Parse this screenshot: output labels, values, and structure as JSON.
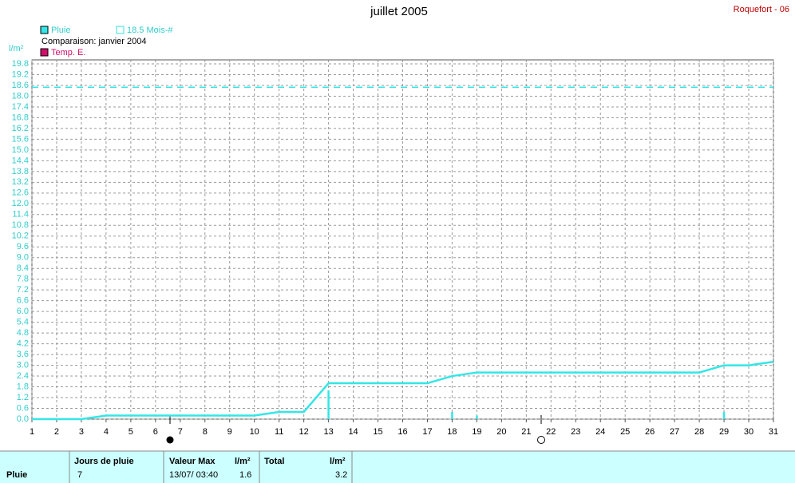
{
  "chart_data": {
    "type": "line",
    "title": "juillet 2005",
    "station": "Roquefort - 06",
    "comparison": "Comparaison: janvier 2004",
    "ylabel": "l/m²",
    "x": [
      1,
      2,
      3,
      4,
      5,
      6,
      7,
      8,
      9,
      10,
      11,
      12,
      13,
      14,
      15,
      16,
      17,
      18,
      19,
      20,
      21,
      22,
      23,
      24,
      25,
      26,
      27,
      28,
      29,
      30,
      31
    ],
    "xlim": [
      1,
      31
    ],
    "xticks": [
      1,
      2,
      3,
      4,
      5,
      6,
      7,
      8,
      9,
      10,
      11,
      12,
      13,
      14,
      15,
      16,
      17,
      18,
      19,
      20,
      21,
      22,
      23,
      24,
      25,
      26,
      27,
      28,
      29,
      30,
      31
    ],
    "ylim": [
      0,
      19.8
    ],
    "yticks": [
      {
        "value": 0,
        "label": "0.0"
      },
      0.6,
      1.2,
      1.8,
      2.4,
      {
        "value": 3,
        "label": "3.0"
      },
      3.6,
      4.2,
      4.8,
      5.4,
      {
        "value": 6,
        "label": "6.0"
      },
      6.6,
      7.2,
      7.8,
      8.4,
      {
        "value": 9,
        "label": "9.0"
      },
      9.6,
      10.2,
      10.8,
      11.4,
      {
        "value": 12,
        "label": "12.0"
      },
      12.6,
      13.2,
      13.8,
      14.4,
      {
        "value": 15,
        "label": "15.0"
      },
      15.6,
      16.2,
      16.8,
      17.4,
      {
        "value": 18,
        "label": "18.0"
      },
      18.6,
      19.2,
      19.8
    ],
    "grid": true,
    "series": [
      {
        "name": "Pluie",
        "color": "#33e6e6",
        "values": [
          0,
          0,
          0,
          0.2,
          0.2,
          0.2,
          0.2,
          0.2,
          0.2,
          0.2,
          0.4,
          0.4,
          2.0,
          2.0,
          2.0,
          2.0,
          2.0,
          2.4,
          2.6,
          2.6,
          2.6,
          2.6,
          2.6,
          2.6,
          2.6,
          2.6,
          2.6,
          2.6,
          3.0,
          3.0,
          3.2
        ]
      }
    ],
    "bars": {
      "color": "#33e6e6",
      "x": [
        13,
        18,
        19,
        29
      ],
      "values": [
        1.6,
        0.4,
        0.2,
        0.4
      ]
    },
    "reference": {
      "name": "18.5 Mois-#",
      "value": 18.5,
      "color": "#33e6e6"
    },
    "temp_legend": {
      "name": "Temp. E.",
      "color": "#d0106a"
    }
  },
  "table": {
    "header": [
      "Jours de pluie",
      "Valeur Max",
      "l/m²",
      "Total",
      "l/m²"
    ],
    "row": [
      "Pluie",
      "7",
      "13/07/ 03:40",
      "1.6",
      "3.2"
    ]
  }
}
